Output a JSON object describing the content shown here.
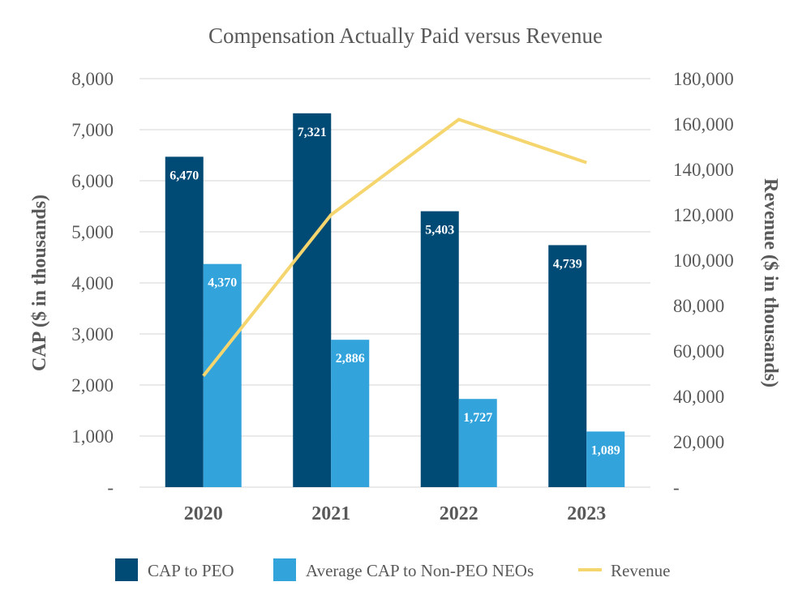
{
  "chart_data": {
    "type": "bar",
    "title": "Compensation Actually Paid versus Revenue",
    "categories": [
      "2020",
      "2021",
      "2022",
      "2023"
    ],
    "series": [
      {
        "name": "CAP to PEO",
        "type": "bar",
        "axis": "left",
        "color": "#004a76",
        "values": [
          6470,
          7321,
          5403,
          4739
        ],
        "labels": [
          "6,470",
          "7,321",
          "5,403",
          "4,739"
        ]
      },
      {
        "name": "Average CAP to Non-PEO NEOs",
        "type": "bar",
        "axis": "left",
        "color": "#33a3dc",
        "values": [
          4370,
          2886,
          1727,
          1089
        ],
        "labels": [
          "4,370",
          "2,886",
          "1,727",
          "1,089"
        ]
      },
      {
        "name": "Revenue",
        "type": "line",
        "axis": "right",
        "color": "#f5d56e",
        "values": [
          49000,
          120000,
          162000,
          143000
        ]
      }
    ],
    "y_left": {
      "label": "CAP ($ in thousands)",
      "range": [
        0,
        8000
      ],
      "ticks": [
        0,
        1000,
        2000,
        3000,
        4000,
        5000,
        6000,
        7000,
        8000
      ],
      "tick_labels": [
        "-",
        "1,000",
        "2,000",
        "3,000",
        "4,000",
        "5,000",
        "6,000",
        "7,000",
        "8,000"
      ]
    },
    "y_right": {
      "label": "Revenue ($ in thousands)",
      "range": [
        0,
        180000
      ],
      "ticks": [
        0,
        20000,
        40000,
        60000,
        80000,
        100000,
        120000,
        140000,
        160000,
        180000
      ],
      "tick_labels": [
        "-",
        "20,000",
        "40,000",
        "60,000",
        "80,000",
        "100,000",
        "120,000",
        "140,000",
        "160,000",
        "180,000"
      ]
    },
    "xlabel": "",
    "grid": true,
    "legend": "bottom"
  }
}
